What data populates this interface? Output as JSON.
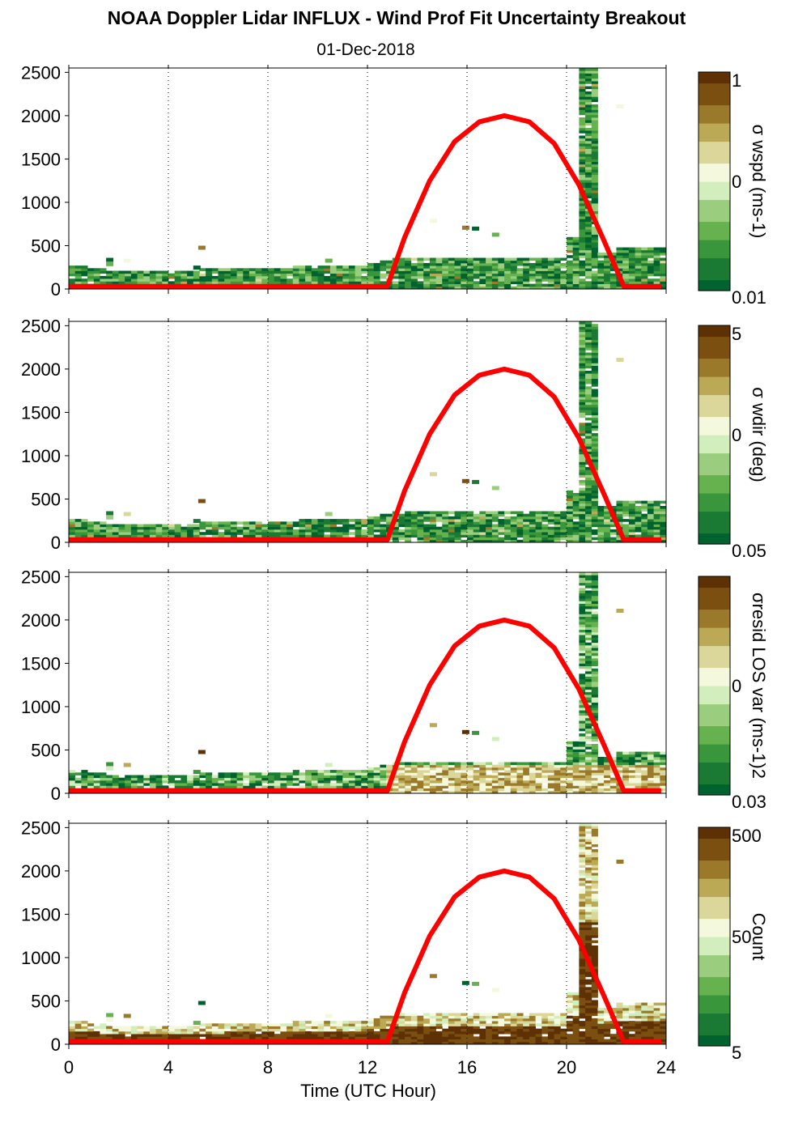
{
  "figure": {
    "title": "NOAA Doppler Lidar INFLUX - Wind Prof Fit Uncertainty Breakout",
    "subtitle": "01-Dec-2018",
    "xlabel": "Time (UTC Hour)"
  },
  "colors": {
    "sun_curve": "#ff0000",
    "colormap": [
      "#00622e",
      "#1a7a33",
      "#3a963b",
      "#66b24e",
      "#9bcd7e",
      "#d2eebc",
      "#f4f9de",
      "#dbd79a",
      "#bba956",
      "#9a7a2a",
      "#7a4f10",
      "#5e3104"
    ]
  },
  "chart_data": [
    {
      "type": "heatmap",
      "panel": 1,
      "colorbar_label": "σ wspd (ms-1)",
      "colorbar_ticks": [
        "1",
        "0",
        "0.01"
      ],
      "x": {
        "ticks": [
          0,
          4,
          8,
          12,
          16,
          20,
          24
        ],
        "lim": [
          0,
          24
        ]
      },
      "y": {
        "ticks": [
          0,
          500,
          1000,
          1500,
          2000,
          2500
        ],
        "lim": [
          0,
          2550
        ]
      },
      "grid": "dotted vertical at 4-hour ticks",
      "field": "sigma_wspd"
    },
    {
      "type": "heatmap",
      "panel": 2,
      "colorbar_label": "σ wdir (deg)",
      "colorbar_ticks": [
        "5",
        "0",
        "0.05"
      ],
      "x": {
        "ticks": [
          0,
          4,
          8,
          12,
          16,
          20,
          24
        ],
        "lim": [
          0,
          24
        ]
      },
      "y": {
        "ticks": [
          0,
          500,
          1000,
          1500,
          2000,
          2500
        ],
        "lim": [
          0,
          2550
        ]
      },
      "grid": "dotted vertical at 4-hour ticks",
      "field": "sigma_wdir"
    },
    {
      "type": "heatmap",
      "panel": 3,
      "colorbar_label": "σresid LOS var (ms-1)2",
      "colorbar_ticks": [
        "0",
        "0.03"
      ],
      "x": {
        "ticks": [
          0,
          4,
          8,
          12,
          16,
          20,
          24
        ],
        "lim": [
          0,
          24
        ]
      },
      "y": {
        "ticks": [
          0,
          500,
          1000,
          1500,
          2000,
          2500
        ],
        "lim": [
          0,
          2550
        ]
      },
      "grid": "dotted vertical at 4-hour ticks",
      "field": "resid_los_var"
    },
    {
      "type": "heatmap",
      "panel": 4,
      "colorbar_label": "Count",
      "colorbar_ticks": [
        "500",
        "50",
        "5"
      ],
      "x": {
        "ticks": [
          0,
          4,
          8,
          12,
          16,
          20,
          24
        ],
        "lim": [
          0,
          24
        ]
      },
      "y": {
        "ticks": [
          0,
          500,
          1000,
          1500,
          2000,
          2500
        ],
        "lim": [
          0,
          2550
        ]
      },
      "grid": "dotted vertical at 4-hour ticks",
      "field": "count"
    }
  ],
  "sun_elevation_curve": {
    "x": [
      0,
      12.8,
      13.5,
      14.5,
      15.5,
      16.5,
      17.5,
      18.5,
      19.5,
      20.5,
      21.5,
      22.3,
      23.8
    ],
    "y": [
      30,
      30,
      600,
      1250,
      1700,
      1930,
      2000,
      1930,
      1680,
      1200,
      560,
      30,
      30
    ]
  }
}
